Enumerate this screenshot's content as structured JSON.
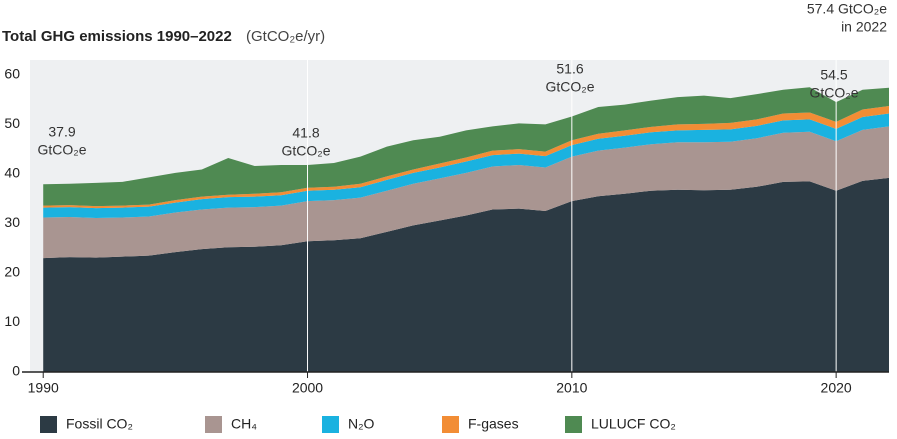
{
  "chart_data": {
    "type": "stacked-area",
    "title": "Total GHG emissions 1990–2022",
    "subtitle": "(GtCO₂e/yr)",
    "x": [
      1990,
      1991,
      1992,
      1993,
      1994,
      1995,
      1996,
      1997,
      1998,
      1999,
      2000,
      2001,
      2002,
      2003,
      2004,
      2005,
      2006,
      2007,
      2008,
      2009,
      2010,
      2011,
      2012,
      2013,
      2014,
      2015,
      2016,
      2017,
      2018,
      2019,
      2020,
      2021,
      2022
    ],
    "xlim": [
      1989.5,
      2022
    ],
    "xticks": [
      1990,
      2000,
      2010,
      2020
    ],
    "ylim": [
      0,
      63
    ],
    "yticks": [
      0,
      10,
      20,
      30,
      40,
      50,
      60
    ],
    "grid": true,
    "legend": "bottom",
    "series": [
      {
        "name": "Fossil CO₂",
        "color": "#2c3a44",
        "values": [
          23.0,
          23.2,
          23.1,
          23.3,
          23.5,
          24.2,
          24.8,
          25.2,
          25.3,
          25.6,
          26.4,
          26.6,
          27.0,
          28.3,
          29.6,
          30.6,
          31.6,
          32.8,
          33.0,
          32.5,
          34.5,
          35.5,
          36.0,
          36.6,
          36.8,
          36.7,
          36.8,
          37.4,
          38.4,
          38.5,
          36.6,
          38.6,
          39.2
        ]
      },
      {
        "name": "CH₄",
        "color": "#a99591",
        "values": [
          8.2,
          8.1,
          8.0,
          7.9,
          7.9,
          8.0,
          8.0,
          8.0,
          8.0,
          8.0,
          8.1,
          8.1,
          8.2,
          8.3,
          8.4,
          8.5,
          8.6,
          8.7,
          8.8,
          8.8,
          9.0,
          9.2,
          9.3,
          9.4,
          9.6,
          9.7,
          9.7,
          9.8,
          9.9,
          10.0,
          10.0,
          10.3,
          10.4
        ]
      },
      {
        "name": "N₂O",
        "color": "#1ab2e0",
        "values": [
          2.0,
          2.0,
          2.0,
          2.0,
          2.0,
          2.0,
          2.1,
          2.1,
          2.1,
          2.1,
          2.1,
          2.1,
          2.1,
          2.2,
          2.2,
          2.2,
          2.3,
          2.3,
          2.3,
          2.3,
          2.3,
          2.4,
          2.4,
          2.4,
          2.4,
          2.5,
          2.5,
          2.5,
          2.5,
          2.5,
          2.5,
          2.6,
          2.6
        ]
      },
      {
        "name": "F-gases",
        "color": "#f28d35",
        "values": [
          0.4,
          0.4,
          0.4,
          0.4,
          0.4,
          0.5,
          0.5,
          0.5,
          0.6,
          0.6,
          0.6,
          0.6,
          0.7,
          0.7,
          0.7,
          0.8,
          0.8,
          0.9,
          0.9,
          0.9,
          1.0,
          1.0,
          1.1,
          1.1,
          1.2,
          1.2,
          1.3,
          1.3,
          1.4,
          1.4,
          1.4,
          1.5,
          1.5
        ]
      },
      {
        "name": "LULUCF CO₂",
        "color": "#4f8a52",
        "values": [
          4.3,
          4.3,
          4.7,
          4.8,
          5.5,
          5.5,
          5.5,
          7.4,
          5.6,
          5.5,
          4.6,
          4.8,
          5.5,
          6.0,
          5.9,
          5.4,
          5.5,
          4.9,
          5.2,
          5.5,
          4.8,
          5.4,
          5.2,
          5.3,
          5.5,
          5.7,
          5.0,
          5.1,
          4.8,
          5.1,
          4.0,
          4.0,
          3.7
        ]
      }
    ],
    "annotations": [
      [
        "37.9",
        "GtCO₂e"
      ],
      [
        "41.8",
        "GtCO₂e"
      ],
      [
        "51.6",
        "GtCO₂e"
      ],
      [
        "54.5",
        "GtCO₂e"
      ],
      [
        "57.4 GtCO₂e",
        "in 2022"
      ]
    ]
  }
}
